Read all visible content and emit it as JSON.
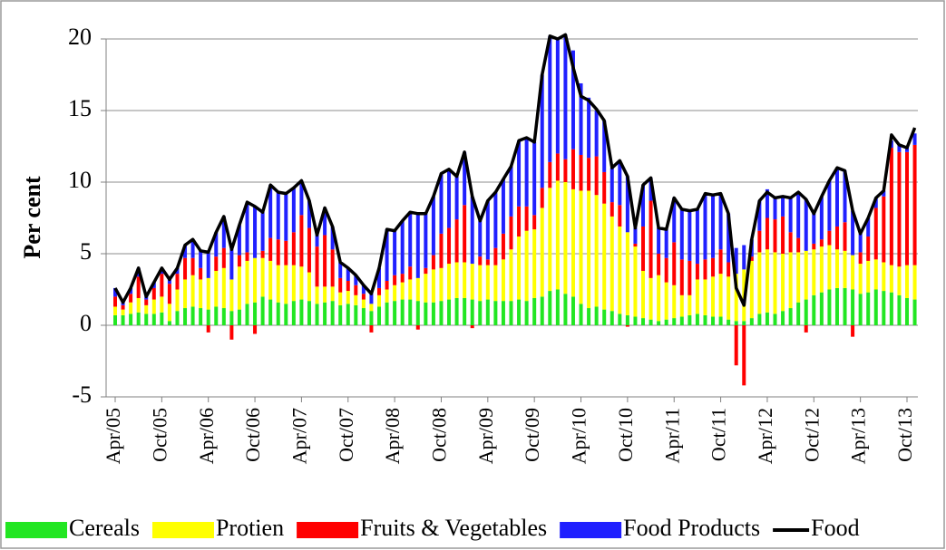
{
  "chart_data": {
    "type": "bar",
    "stacked": true,
    "y_label": "Per cent",
    "ylim": [
      -5,
      20
    ],
    "yticks": [
      -5,
      0,
      5,
      10,
      15,
      20
    ],
    "grid": true,
    "legend": "bottom",
    "categories": [
      "Apr/05",
      null,
      null,
      null,
      null,
      null,
      "Oct/05",
      null,
      null,
      null,
      null,
      null,
      "Apr/06",
      null,
      null,
      null,
      null,
      null,
      "Oct/06",
      null,
      null,
      null,
      null,
      null,
      "Apr/07",
      null,
      null,
      null,
      null,
      null,
      "Oct/07",
      null,
      null,
      null,
      null,
      null,
      "Apr/08",
      null,
      null,
      null,
      null,
      null,
      "Oct/08",
      null,
      null,
      null,
      null,
      null,
      "Apr/09",
      null,
      null,
      null,
      null,
      null,
      "Oct/09",
      null,
      null,
      null,
      null,
      null,
      "Apr/10",
      null,
      null,
      null,
      null,
      null,
      "Oct/10",
      null,
      null,
      null,
      null,
      null,
      "Apr/11",
      null,
      null,
      null,
      null,
      null,
      "Oct/11",
      null,
      null,
      null,
      null,
      null,
      "Apr/12",
      null,
      null,
      null,
      null,
      null,
      "Oct/12",
      null,
      null,
      null,
      null,
      null,
      "Apr/13",
      null,
      null,
      null,
      null,
      null,
      "Oct/13",
      null
    ],
    "series": [
      {
        "name": "Cereals",
        "color": "#22e622",
        "type": "bar",
        "values": [
          0.7,
          0.7,
          0.8,
          0.9,
          0.8,
          0.8,
          0.9,
          0.3,
          1.0,
          1.2,
          1.3,
          1.2,
          1.1,
          1.3,
          1.2,
          1.0,
          1.1,
          1.5,
          1.6,
          2.0,
          1.8,
          1.6,
          1.5,
          1.7,
          1.8,
          1.7,
          1.5,
          1.6,
          1.7,
          1.4,
          1.5,
          1.4,
          1.2,
          1.0,
          1.3,
          1.6,
          1.7,
          1.8,
          1.8,
          1.7,
          1.6,
          1.6,
          1.7,
          1.8,
          1.9,
          1.9,
          1.8,
          1.7,
          1.8,
          1.7,
          1.7,
          1.7,
          1.8,
          1.7,
          1.9,
          2.0,
          2.4,
          2.5,
          2.2,
          2.0,
          1.5,
          1.2,
          1.3,
          1.1,
          1.0,
          0.8,
          0.7,
          0.6,
          0.5,
          0.4,
          0.3,
          0.4,
          0.5,
          0.6,
          0.7,
          0.8,
          0.7,
          0.6,
          0.6,
          0.4,
          0.3,
          0.3,
          0.5,
          0.8,
          0.9,
          0.8,
          1.0,
          1.2,
          1.6,
          1.8,
          2.1,
          2.3,
          2.5,
          2.6,
          2.6,
          2.5,
          2.2,
          2.3,
          2.5,
          2.4,
          2.3,
          2.1,
          1.9,
          1.8
        ]
      },
      {
        "name": "Protien",
        "color": "#ffff00",
        "type": "bar",
        "values": [
          0.6,
          0.4,
          0.8,
          1.0,
          0.6,
          1.0,
          1.1,
          1.2,
          1.5,
          2.0,
          2.2,
          2.0,
          2.2,
          2.5,
          2.8,
          2.2,
          3.0,
          3.0,
          3.1,
          2.7,
          2.7,
          2.6,
          2.7,
          2.5,
          2.3,
          2.0,
          1.2,
          1.1,
          1.0,
          0.9,
          0.9,
          0.7,
          0.6,
          0.5,
          0.8,
          0.9,
          1.1,
          1.2,
          1.4,
          1.6,
          2.0,
          2.3,
          2.3,
          2.5,
          2.5,
          2.5,
          2.5,
          2.5,
          2.4,
          2.5,
          2.9,
          3.6,
          4.4,
          4.9,
          4.8,
          6.2,
          7.2,
          7.6,
          7.8,
          7.5,
          7.9,
          8.2,
          7.8,
          7.4,
          6.6,
          6.1,
          5.8,
          4.9,
          3.3,
          2.9,
          3.2,
          2.6,
          2.3,
          1.5,
          1.4,
          2.4,
          2.5,
          2.8,
          3.0,
          3.0,
          3.3,
          3.6,
          4.0,
          4.3,
          4.4,
          4.3,
          4.0,
          3.9,
          3.5,
          3.4,
          3.2,
          3.2,
          3.1,
          2.7,
          2.6,
          2.4,
          2.1,
          2.2,
          2.1,
          2.0,
          1.9,
          2.0,
          2.3,
          2.4
        ]
      },
      {
        "name": "Fruits & Vegetables",
        "color": "#ff0000",
        "type": "bar",
        "values": [
          0.7,
          0.3,
          0.6,
          1.5,
          0.4,
          0.8,
          1.6,
          1.4,
          1.1,
          1.5,
          1.2,
          0.8,
          -0.5,
          1.0,
          1.4,
          -1.0,
          0.8,
          0.6,
          -0.6,
          0.5,
          1.6,
          1.8,
          1.7,
          2.3,
          3.6,
          3.1,
          2.8,
          3.6,
          2.6,
          1.0,
          0.7,
          0.7,
          0.4,
          -0.5,
          0.5,
          0.6,
          0.7,
          0.6,
          0.9,
          -0.3,
          0.4,
          1.0,
          2.4,
          2.5,
          3.0,
          4.0,
          -0.2,
          0.6,
          0.4,
          1.2,
          1.8,
          2.3,
          2.1,
          1.7,
          1.0,
          1.4,
          1.8,
          1.9,
          1.6,
          2.8,
          2.5,
          2.3,
          2.7,
          2.2,
          1.0,
          1.5,
          -0.1,
          0.2,
          3.1,
          5.4,
          1.5,
          1.7,
          3.0,
          2.5,
          2.4,
          1.1,
          1.4,
          1.3,
          1.7,
          1.0,
          -2.8,
          -4.2,
          0.3,
          1.5,
          2.2,
          2.3,
          2.6,
          1.4,
          1.0,
          -0.5,
          0.4,
          0.5,
          1.0,
          1.6,
          2.0,
          -0.8,
          0.8,
          1.7,
          3.6,
          4.6,
          8.2,
          8.0,
          7.9,
          8.4
        ]
      },
      {
        "name": "Food Products",
        "color": "#2020ff",
        "type": "bar",
        "values": [
          0.6,
          0.2,
          0.4,
          0.6,
          0.2,
          0.4,
          0.4,
          0.3,
          0.4,
          0.9,
          1.3,
          1.2,
          1.8,
          1.7,
          2.2,
          2.1,
          2.1,
          3.5,
          3.6,
          2.7,
          3.7,
          3.3,
          3.3,
          3.1,
          2.4,
          1.9,
          0.8,
          1.9,
          1.6,
          1.1,
          0.9,
          0.7,
          0.6,
          0.7,
          1.4,
          3.6,
          3.1,
          3.7,
          3.8,
          4.5,
          3.8,
          4.1,
          4.2,
          4.1,
          3.0,
          3.7,
          4.7,
          2.5,
          4.1,
          3.9,
          3.8,
          3.5,
          4.6,
          4.8,
          5.1,
          7.9,
          8.8,
          8.0,
          8.7,
          6.9,
          5.0,
          4.2,
          3.2,
          3.6,
          2.4,
          3.1,
          3.9,
          1.1,
          2.9,
          1.6,
          1.8,
          2.0,
          3.1,
          3.5,
          3.5,
          3.8,
          4.6,
          4.4,
          3.9,
          3.4,
          1.8,
          1.7,
          1.2,
          2.1,
          2.0,
          1.5,
          1.4,
          2.4,
          3.2,
          3.6,
          2.1,
          3.0,
          3.5,
          4.1,
          3.6,
          3.1,
          1.3,
          1.3,
          0.7,
          0.4,
          0.5,
          0.5,
          0.3,
          0.8
        ]
      },
      {
        "name": "Food",
        "color": "#000000",
        "type": "line",
        "values": [
          2.6,
          1.6,
          2.6,
          4.0,
          2.0,
          3.0,
          4.0,
          3.2,
          4.0,
          5.6,
          6.0,
          5.2,
          5.1,
          6.5,
          7.6,
          5.3,
          7.0,
          8.6,
          8.3,
          7.9,
          9.8,
          9.3,
          9.2,
          9.6,
          10.1,
          8.7,
          6.3,
          8.2,
          6.9,
          4.4,
          4.0,
          3.5,
          2.8,
          2.2,
          4.0,
          6.7,
          6.6,
          7.3,
          7.9,
          7.8,
          7.8,
          9.0,
          10.6,
          10.9,
          10.4,
          12.1,
          9.0,
          7.3,
          8.7,
          9.3,
          10.2,
          11.1,
          12.9,
          13.1,
          12.8,
          17.5,
          20.2,
          20.0,
          20.3,
          18.0,
          16.0,
          15.7,
          15.1,
          14.3,
          11.0,
          11.5,
          10.4,
          6.8,
          9.8,
          10.3,
          6.8,
          6.7,
          8.9,
          8.1,
          8.0,
          8.1,
          9.2,
          9.1,
          9.2,
          7.8,
          2.6,
          1.4,
          6.0,
          8.7,
          9.3,
          8.9,
          9.0,
          8.9,
          9.3,
          8.8,
          7.8,
          9.0,
          10.1,
          11.0,
          10.8,
          8.0,
          6.4,
          7.5,
          8.9,
          9.4,
          13.3,
          12.6,
          12.4,
          13.8
        ]
      }
    ]
  }
}
